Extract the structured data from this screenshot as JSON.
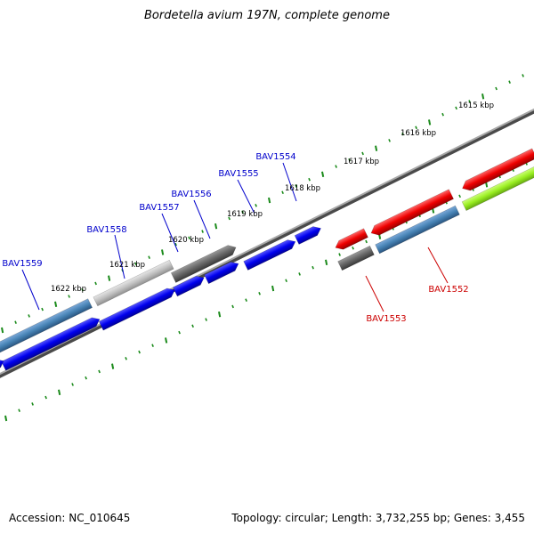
{
  "title": "Bordetella avium 197N, complete genome",
  "footer": {
    "accession": "Accession: NC_010645",
    "summary": "Topology: circular; Length: 3,732,255 bp; Genes: 3,455"
  },
  "colors": {
    "tick": "#1a8a1a",
    "backbone": "#7a7a7a",
    "blue_gene": "#0000ee",
    "steel_gene": "#4682b4",
    "gray_gene": "#666666",
    "light_gene": "#bbbbbb",
    "red_gene": "#ee0000",
    "green_gene": "#99ee22",
    "label_blue": "#0000cc",
    "label_red": "#cc0000"
  },
  "tick_labels": [
    {
      "text": "1622 kbp",
      "kbp": 1622
    },
    {
      "text": "1621 kbp",
      "kbp": 1621
    },
    {
      "text": "1620 kbp",
      "kbp": 1620
    },
    {
      "text": "1619 kbp",
      "kbp": 1619
    },
    {
      "text": "1618 kbp",
      "kbp": 1618
    },
    {
      "text": "1617 kbp",
      "kbp": 1617
    },
    {
      "text": "1616 kbp",
      "kbp": 1616
    },
    {
      "text": "1615 kbp",
      "kbp": 1615
    }
  ],
  "gene_labels": [
    {
      "text": "BAV1559",
      "color": "label_blue"
    },
    {
      "text": "BAV1558",
      "color": "label_blue"
    },
    {
      "text": "BAV1557",
      "color": "label_blue"
    },
    {
      "text": "BAV1556",
      "color": "label_blue"
    },
    {
      "text": "BAV1555",
      "color": "label_blue"
    },
    {
      "text": "BAV1554",
      "color": "label_blue"
    },
    {
      "text": "BAV1553",
      "color": "label_red"
    },
    {
      "text": "BAV1552",
      "color": "label_red"
    }
  ]
}
